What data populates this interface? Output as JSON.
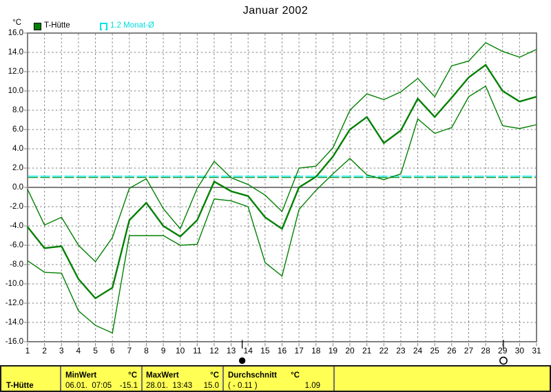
{
  "title": "Januar 2002",
  "y_axis_unit": "°C",
  "legend": {
    "series_label": "T-Hütte",
    "average_label": "1.2 Monat-Ø"
  },
  "colors": {
    "series_green": "#008000",
    "average_cyan": "#00ecec",
    "grid_gray": "#808080",
    "table_yellow": "#ffff54",
    "marker_black": "#000000"
  },
  "chart_data": {
    "type": "line",
    "title": "Januar 2002",
    "xlabel": "",
    "ylabel": "°C",
    "ylim": [
      -16.0,
      16.0
    ],
    "ytick_step": 2.0,
    "grid": true,
    "legend_position": "top-left",
    "x": [
      1,
      2,
      3,
      4,
      5,
      6,
      7,
      8,
      9,
      10,
      11,
      12,
      13,
      14,
      15,
      16,
      17,
      18,
      19,
      20,
      21,
      22,
      23,
      24,
      25,
      26,
      27,
      28,
      29,
      30,
      31
    ],
    "series": [
      {
        "name": "T-Hütte Tagesmaximum",
        "role": "max",
        "values": [
          -0.2,
          -3.9,
          -3.1,
          -6.0,
          -7.7,
          -5.2,
          -0.1,
          0.9,
          -2.2,
          -4.3,
          -0.1,
          2.7,
          1.0,
          0.3,
          -0.8,
          -2.5,
          2.0,
          2.2,
          4.1,
          8.0,
          9.7,
          9.1,
          9.9,
          11.3,
          9.4,
          12.6,
          13.1,
          15.0,
          14.1,
          13.5,
          14.3
        ]
      },
      {
        "name": "T-Hütte Tagesmittel",
        "role": "mean",
        "values": [
          -4.1,
          -6.3,
          -6.1,
          -9.5,
          -11.5,
          -10.4,
          -3.4,
          -1.6,
          -4.0,
          -5.1,
          -3.4,
          0.6,
          -0.4,
          -0.9,
          -3.1,
          -4.3,
          0.0,
          1.1,
          3.2,
          6.0,
          7.3,
          4.6,
          5.9,
          9.2,
          7.3,
          9.3,
          11.4,
          12.7,
          10.0,
          8.9,
          9.4
        ]
      },
      {
        "name": "T-Hütte Tagesminimum",
        "role": "min",
        "values": [
          -7.6,
          -8.8,
          -8.9,
          -12.8,
          -14.3,
          -15.1,
          -5.0,
          -5.0,
          -5.0,
          -6.0,
          -5.9,
          -1.2,
          -1.4,
          -2.0,
          -7.8,
          -9.2,
          -2.3,
          -0.3,
          1.4,
          3.0,
          1.3,
          0.8,
          1.4,
          7.1,
          5.6,
          6.2,
          9.4,
          10.5,
          6.4,
          6.1,
          6.5
        ]
      }
    ],
    "average_line": {
      "label": "1.2 Monat-Ø",
      "value": 1.2
    },
    "moon_markers": [
      {
        "type": "new-moon",
        "day": 13.65
      },
      {
        "type": "full-moon",
        "day": 29.05
      }
    ]
  },
  "status_table": {
    "row_label": "T-Hütte",
    "min": {
      "header": "MinWert",
      "unit": "°C",
      "timestamp": "06.01.  07:05",
      "value": "-15.1"
    },
    "max": {
      "header": "MaxWert",
      "unit": "°C",
      "timestamp": "28.01.  13:43",
      "value": "15.0"
    },
    "avg": {
      "header": "Durchschnitt",
      "unit": "°C",
      "note": "( - 0.11 )",
      "value": "1.09"
    }
  }
}
